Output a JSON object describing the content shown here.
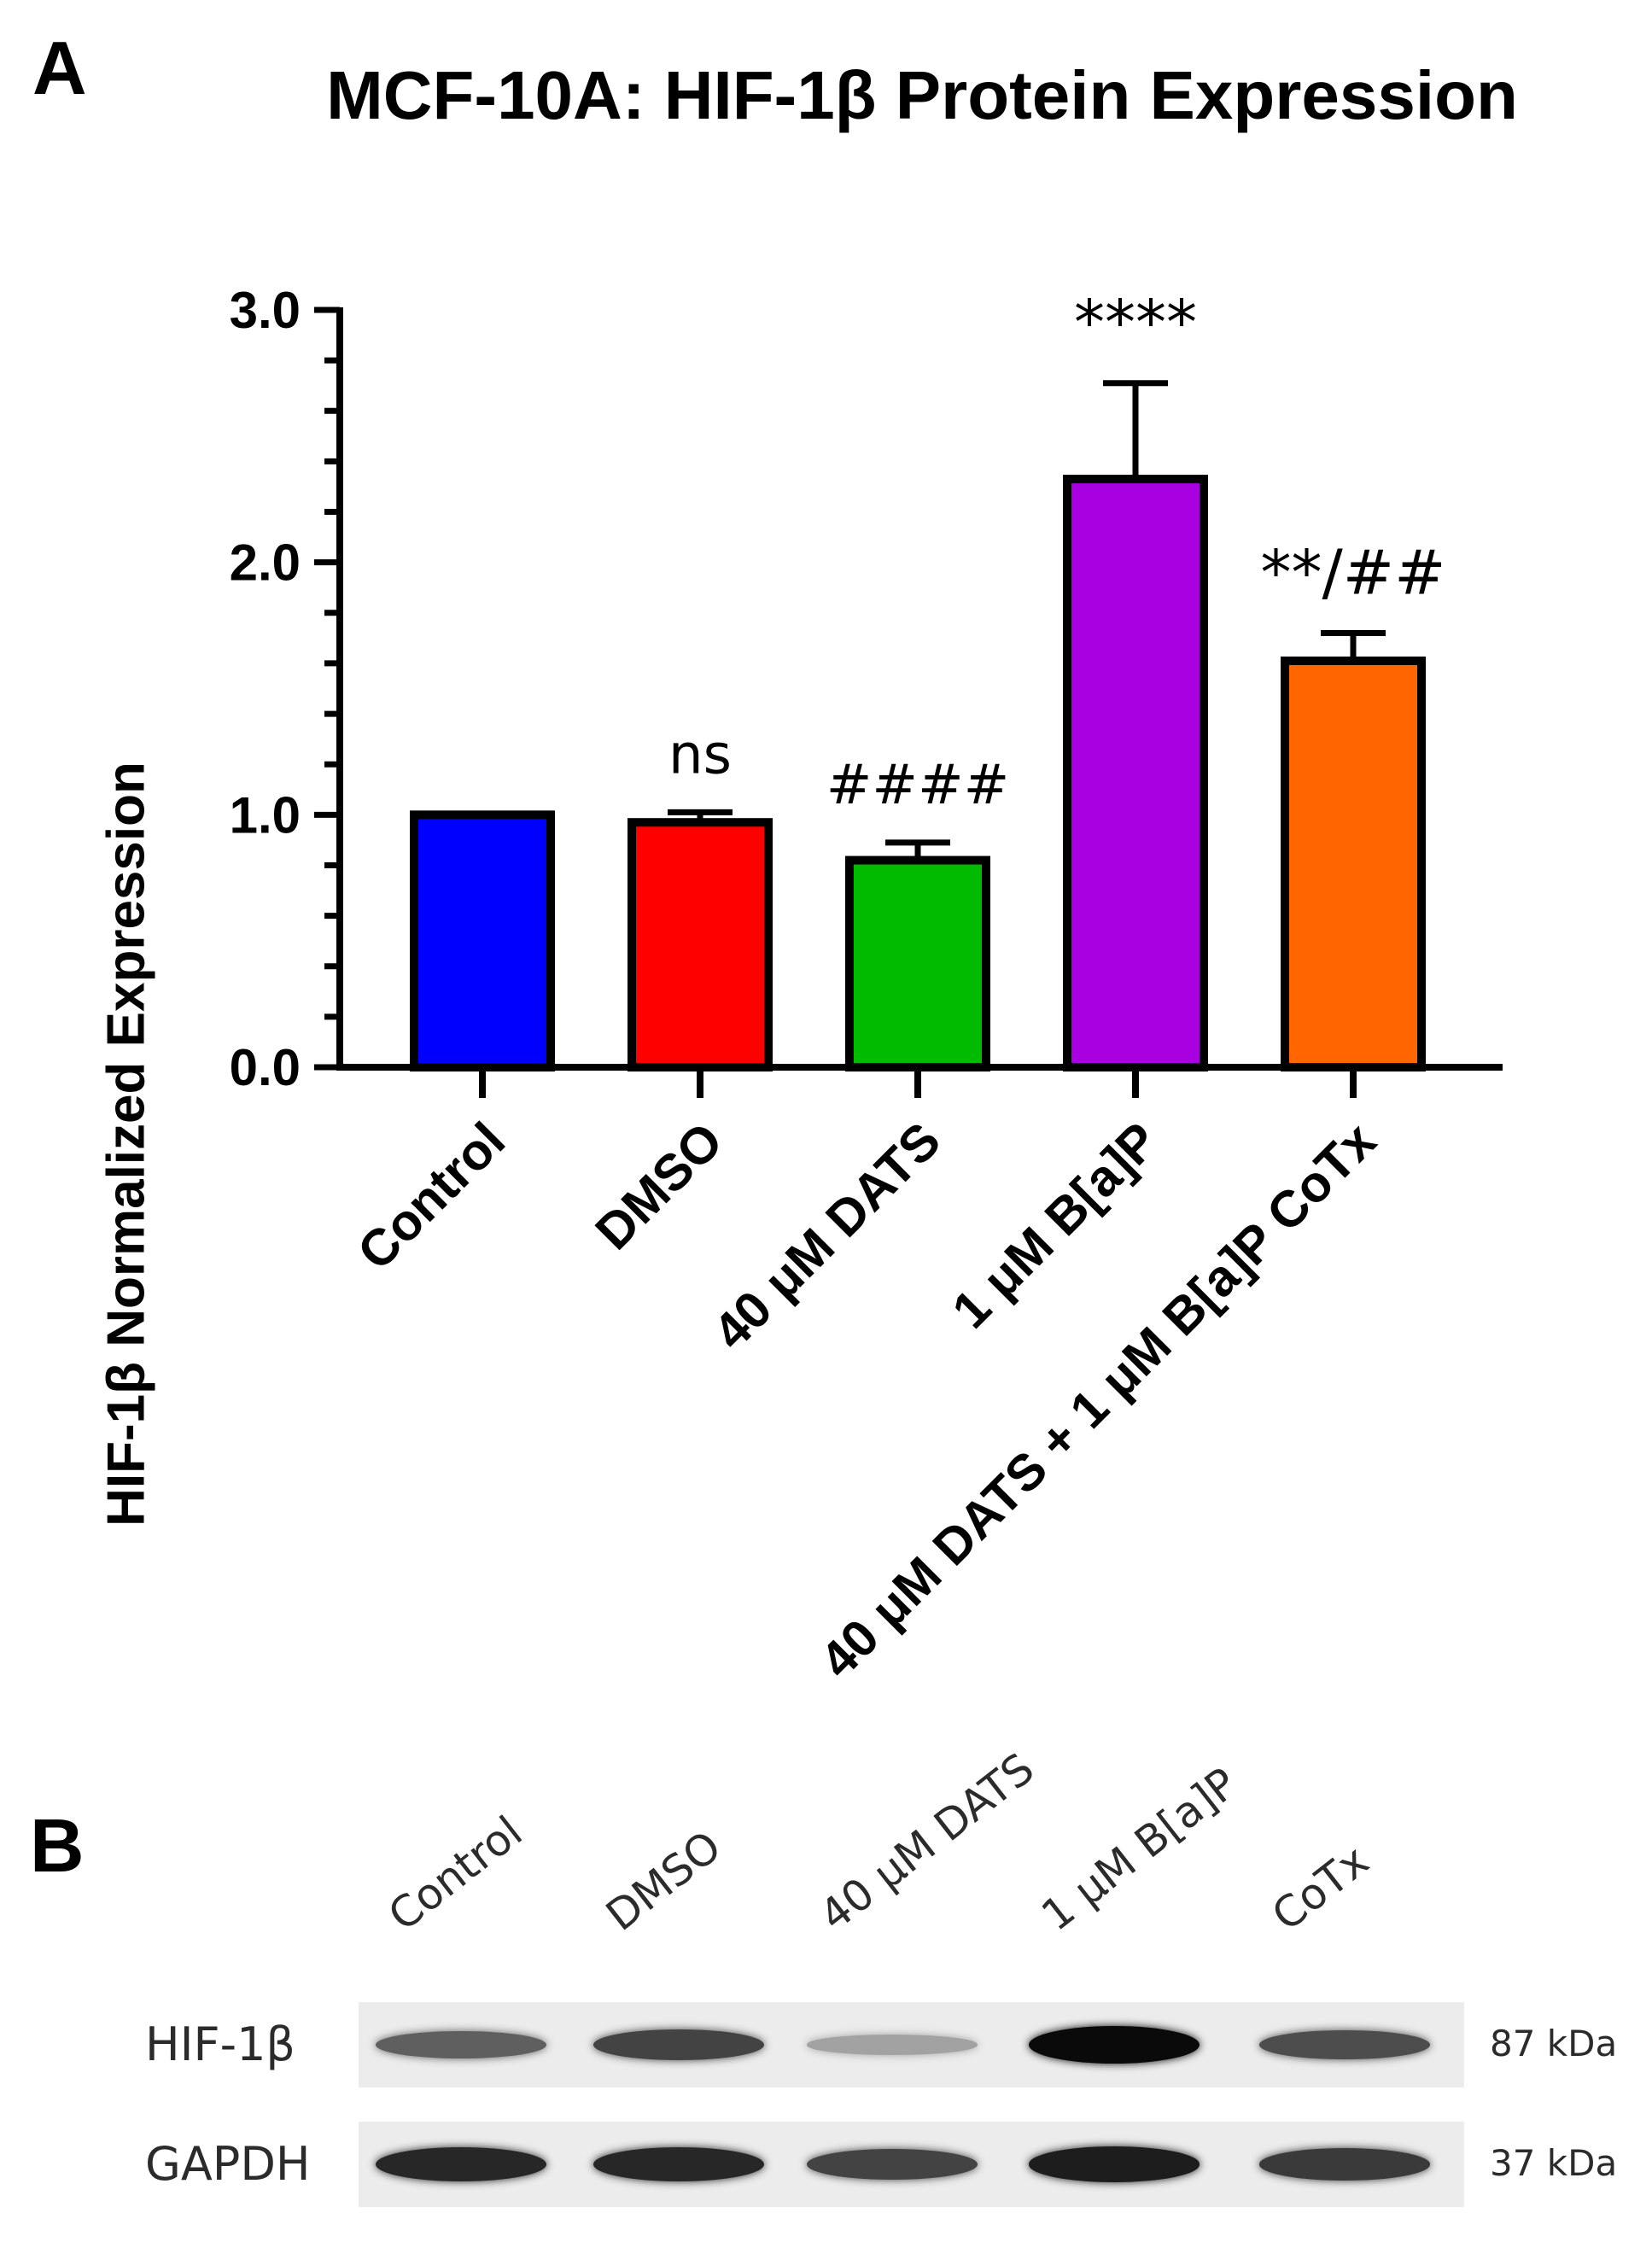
{
  "panel_a_label": "A",
  "panel_b_label": "B",
  "chart_data": {
    "type": "bar",
    "title": "MCF-10A: HIF-1β Protein Expression",
    "xlabel": "",
    "ylabel": "HIF-1β Normalized Expression",
    "ylim": [
      0,
      3
    ],
    "yticks": [
      "0.0",
      "1.0",
      "2.0",
      "3.0"
    ],
    "categories": [
      "Control",
      "DMSO",
      "40 μM DATS",
      "1 μM B[a]P",
      "40 μM DATS + 1 μM B[a]P CoTx"
    ],
    "values": [
      1.0,
      0.97,
      0.82,
      2.33,
      1.61
    ],
    "errors": [
      0,
      0.04,
      0.07,
      0.38,
      0.11
    ],
    "annotations": [
      "",
      "ns",
      "####",
      "****",
      "**/##"
    ],
    "colors": [
      "#0000ff",
      "#ff0000",
      "#00bb00",
      "#a800e0",
      "#ff6600"
    ],
    "grid": false,
    "legend": "none"
  },
  "blot": {
    "lanes": [
      "Control",
      "DMSO",
      "40 μM DATS",
      "1 μM B[a]P",
      "CoTx"
    ],
    "rows": [
      {
        "label": "HIF-1β",
        "kda": "87 kDa",
        "intensity": [
          0.55,
          0.7,
          0.2,
          1.0,
          0.65
        ]
      },
      {
        "label": "GAPDH",
        "kda": "37 kDa",
        "intensity": [
          0.85,
          0.85,
          0.7,
          0.9,
          0.75
        ]
      }
    ]
  }
}
